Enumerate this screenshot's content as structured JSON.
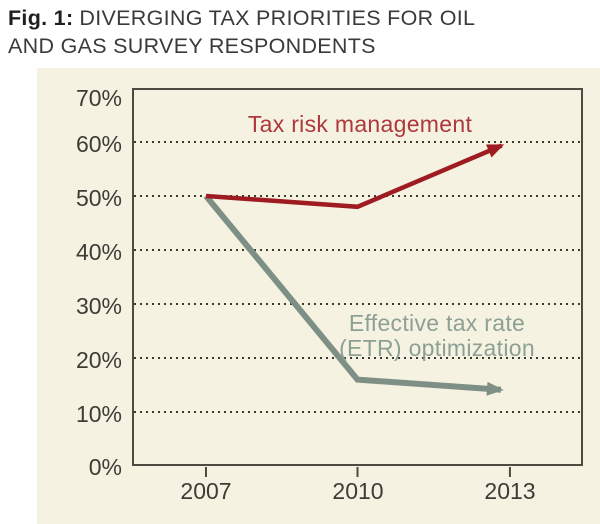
{
  "header": {
    "fig_label": "Fig. 1:",
    "title_line1": "DIVERGING TAX PRIORITIES FOR OIL",
    "title_line2": "AND GAS SURVEY RESPONDENTS"
  },
  "chart_data": {
    "type": "line",
    "title": "Fig. 1: Diverging tax priorities for oil and gas survey respondents",
    "categories": [
      "2007",
      "2010",
      "2013"
    ],
    "xlabel": "",
    "ylabel": "",
    "ylim": [
      0,
      70
    ],
    "ytick_step": 10,
    "ytick_labels": [
      "70%",
      "60%",
      "50%",
      "40%",
      "30%",
      "20%",
      "10%",
      "0%"
    ],
    "grid": "horizontal dotted lines at 10% to 60%",
    "legend_position": "inline labels next to lines",
    "panel_background": "#f5f2e2",
    "axis_color": "#4b4b41",
    "grid_color": "#3a3a30",
    "series": [
      {
        "name": "Tax risk management",
        "values": [
          50,
          48,
          60
        ],
        "color": "#9e1b21",
        "label_color": "#ae383b",
        "label_lines": [
          "Tax risk management"
        ],
        "arrow_end": true
      },
      {
        "name": "Effective tax rate (ETR) optimization",
        "values": [
          50,
          16,
          14
        ],
        "color": "#7e9086",
        "label_color": "#8da094",
        "label_lines": [
          "Effective tax rate",
          "(ETR) optimization"
        ],
        "arrow_end": true
      }
    ]
  }
}
